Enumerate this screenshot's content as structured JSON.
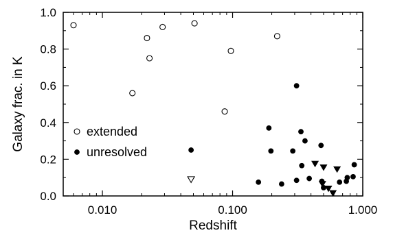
{
  "chart_data": {
    "type": "scatter",
    "title": "",
    "xlabel": "Redshift",
    "ylabel": "Galaxy frac. in K",
    "xscale": "log",
    "xlim": [
      0.005,
      1.0
    ],
    "ylim": [
      0.0,
      1.0
    ],
    "xticks": [
      0.01,
      0.1,
      1.0
    ],
    "xtick_labels": [
      "0.010",
      "0.100",
      "1.000"
    ],
    "yticks": [
      0.0,
      0.2,
      0.4,
      0.6,
      0.8,
      1.0
    ],
    "ytick_labels": [
      "0.0",
      "0.2",
      "0.4",
      "0.6",
      "0.8",
      "1.0"
    ],
    "grid": false,
    "legend_position": "left",
    "series": [
      {
        "name": "extended",
        "marker": "open-circle",
        "color": "#000000",
        "points": [
          [
            0.006,
            0.93
          ],
          [
            0.017,
            0.56
          ],
          [
            0.022,
            0.86
          ],
          [
            0.023,
            0.75
          ],
          [
            0.029,
            0.92
          ],
          [
            0.051,
            0.94
          ],
          [
            0.087,
            0.46
          ],
          [
            0.097,
            0.79
          ],
          [
            0.22,
            0.87
          ]
        ]
      },
      {
        "name": "unresolved",
        "marker": "filled-circle",
        "color": "#000000",
        "points": [
          [
            0.048,
            0.25
          ],
          [
            0.158,
            0.075
          ],
          [
            0.19,
            0.37
          ],
          [
            0.197,
            0.245
          ],
          [
            0.238,
            0.065
          ],
          [
            0.29,
            0.245
          ],
          [
            0.31,
            0.085
          ],
          [
            0.31,
            0.6
          ],
          [
            0.335,
            0.35
          ],
          [
            0.34,
            0.165
          ],
          [
            0.36,
            0.3
          ],
          [
            0.388,
            0.095
          ],
          [
            0.478,
            0.275
          ],
          [
            0.485,
            0.08
          ],
          [
            0.5,
            0.045
          ],
          [
            0.663,
            0.075
          ],
          [
            0.748,
            0.08
          ],
          [
            0.76,
            0.1
          ],
          [
            0.843,
            0.105
          ],
          [
            0.86,
            0.17
          ]
        ]
      },
      {
        "marker": "open-triangle-down",
        "color": "#000000",
        "points": [
          [
            0.048,
            0.09
          ]
        ]
      },
      {
        "marker": "filled-triangle-down",
        "color": "#000000",
        "points": [
          [
            0.43,
            0.175
          ],
          [
            0.5,
            0.155
          ],
          [
            0.49,
            0.065
          ],
          [
            0.545,
            0.04
          ],
          [
            0.59,
            0.015
          ],
          [
            0.635,
            0.145
          ]
        ]
      }
    ]
  }
}
